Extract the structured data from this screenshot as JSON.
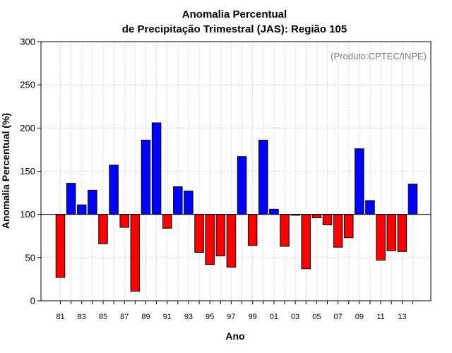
{
  "chart_data": {
    "type": "bar",
    "title_line1": "Anomalia Percentual",
    "title_line2": "de Precipitação Trimestral (JAS): Região 105",
    "xlabel": "Ano",
    "ylabel": "Anomalia Percentual (%)",
    "annotation": "(Produto:CPTEC/INPE)",
    "ylim": [
      0,
      300
    ],
    "baseline": 100,
    "yticks": [
      "0",
      "50",
      "100",
      "150",
      "200",
      "250",
      "300"
    ],
    "categories": [
      "81",
      "82",
      "83",
      "84",
      "85",
      "86",
      "87",
      "88",
      "89",
      "90",
      "91",
      "92",
      "93",
      "94",
      "95",
      "96",
      "97",
      "98",
      "99",
      "00",
      "01",
      "02",
      "03",
      "04",
      "05",
      "06",
      "07",
      "08",
      "09",
      "10",
      "11",
      "12",
      "13",
      "14"
    ],
    "tick_labels": [
      "81",
      "83",
      "85",
      "87",
      "89",
      "91",
      "93",
      "95",
      "97",
      "99",
      "01",
      "03",
      "05",
      "07",
      "09",
      "11",
      "13"
    ],
    "values": [
      27,
      136,
      111,
      128,
      66,
      157,
      85,
      11,
      186,
      206,
      84,
      132,
      127,
      56,
      42,
      52,
      39,
      167,
      64,
      186,
      106,
      63,
      99,
      37,
      96,
      88,
      62,
      73,
      176,
      116,
      47,
      58,
      57,
      135
    ],
    "colors": {
      "above": "#0000ff",
      "below": "#ff0000",
      "outline": "#000000"
    }
  }
}
